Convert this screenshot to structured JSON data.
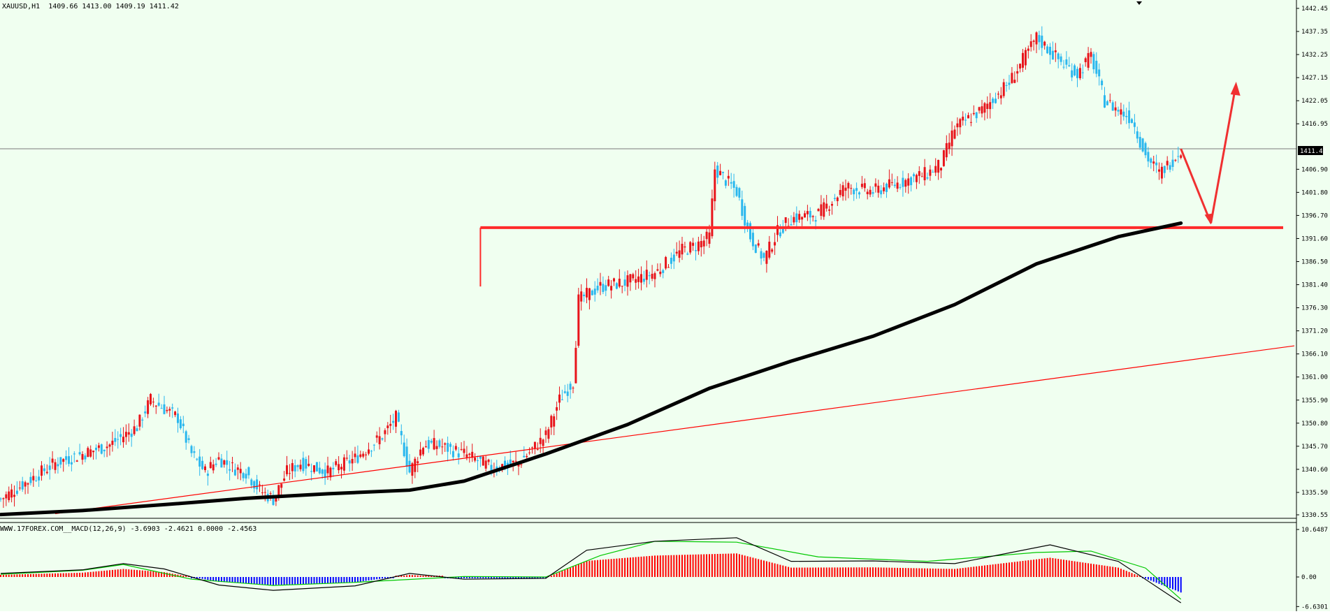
{
  "header": {
    "title": "XAUUSD,H1",
    "ohlc": "1409.66 1413.00 1409.19 1411.42"
  },
  "price_marker": "1411.42",
  "macd_header": "WWW.17FOREX.COM__MACD(12,26,9) -3.6903 -2.4621 0.0000 -2.4563",
  "colors": {
    "background": "#f0fff0",
    "bull_candle": "#e8141b",
    "bear_candle": "#2ab7ee",
    "moving_average": "#000000",
    "support_line": "#ff2a2a",
    "trendline": "#ff0000",
    "macd_positive": "#ff0000",
    "macd_negative": "#0000ff",
    "macd_line": "#000000",
    "signal_line": "#00c800"
  },
  "chart_data": [
    {
      "type": "candlestick",
      "symbol": "XAUUSD",
      "timeframe": "H1",
      "ylim": [
        1330.55,
        1445
      ],
      "yticks": [
        "1442.45",
        "1437.35",
        "1432.25",
        "1427.15",
        "1422.05",
        "1416.95",
        "1411.42",
        "1406.90",
        "1401.80",
        "1396.70",
        "1391.60",
        "1386.50",
        "1381.40",
        "1376.30",
        "1371.20",
        "1366.10",
        "1361.00",
        "1355.90",
        "1350.80",
        "1345.70",
        "1340.60",
        "1335.50",
        "1330.55"
      ],
      "close_path": [
        [
          0,
          1334
        ],
        [
          10,
          1338
        ],
        [
          20,
          1342
        ],
        [
          30,
          1344
        ],
        [
          40,
          1346
        ],
        [
          50,
          1350
        ],
        [
          55,
          1356
        ],
        [
          60,
          1354
        ],
        [
          65,
          1352
        ],
        [
          70,
          1344
        ],
        [
          75,
          1340
        ],
        [
          80,
          1343
        ],
        [
          85,
          1341
        ],
        [
          90,
          1340
        ],
        [
          95,
          1336
        ],
        [
          100,
          1334
        ],
        [
          105,
          1340
        ],
        [
          110,
          1342
        ],
        [
          120,
          1340
        ],
        [
          130,
          1343
        ],
        [
          140,
          1348
        ],
        [
          145,
          1352
        ],
        [
          150,
          1340
        ],
        [
          155,
          1346
        ],
        [
          160,
          1346
        ],
        [
          170,
          1344
        ],
        [
          180,
          1341
        ],
        [
          190,
          1342
        ],
        [
          200,
          1348
        ],
        [
          205,
          1356
        ],
        [
          210,
          1360
        ],
        [
          212,
          1378
        ],
        [
          220,
          1381
        ],
        [
          230,
          1382
        ],
        [
          240,
          1384
        ],
        [
          250,
          1389
        ],
        [
          255,
          1390
        ],
        [
          260,
          1392
        ],
        [
          262,
          1407
        ],
        [
          270,
          1402
        ],
        [
          275,
          1392
        ],
        [
          280,
          1387
        ],
        [
          285,
          1393
        ],
        [
          290,
          1396
        ],
        [
          300,
          1397
        ],
        [
          310,
          1403
        ],
        [
          320,
          1402
        ],
        [
          330,
          1404
        ],
        [
          340,
          1406
        ],
        [
          345,
          1408
        ],
        [
          350,
          1416
        ],
        [
          360,
          1420
        ],
        [
          370,
          1426
        ],
        [
          380,
          1436
        ],
        [
          390,
          1430
        ],
        [
          395,
          1428
        ],
        [
          400,
          1432
        ],
        [
          405,
          1422
        ],
        [
          415,
          1418
        ],
        [
          420,
          1410
        ],
        [
          425,
          1406
        ],
        [
          430,
          1409
        ],
        [
          433,
          1411.42
        ]
      ],
      "ma_path": [
        [
          0,
          1330.6
        ],
        [
          30,
          1331.5
        ],
        [
          60,
          1332.8
        ],
        [
          90,
          1334.2
        ],
        [
          120,
          1335.2
        ],
        [
          150,
          1336.0
        ],
        [
          170,
          1338.0
        ],
        [
          200,
          1344.0
        ],
        [
          230,
          1350.5
        ],
        [
          260,
          1358.5
        ],
        [
          290,
          1364.5
        ],
        [
          320,
          1370.0
        ],
        [
          350,
          1377.0
        ],
        [
          380,
          1386.0
        ],
        [
          410,
          1392.0
        ],
        [
          433,
          1395.0
        ]
      ],
      "support_level": 1394.0,
      "trendline": [
        [
          20,
          1330.8
        ],
        [
          433,
          1364.5
        ]
      ],
      "projection": [
        [
          433,
          1411.42
        ],
        [
          444,
          1395.0
        ],
        [
          453,
          1425.0
        ]
      ]
    },
    {
      "type": "bar",
      "title": "MACD(12,26,9)",
      "values_label": [
        "10.6487",
        "0.00",
        "-6.6301"
      ],
      "ylim": [
        -6.6301,
        10.6487
      ],
      "macd_line": [
        [
          0,
          0.8
        ],
        [
          30,
          1.6
        ],
        [
          45,
          3.0
        ],
        [
          60,
          1.8
        ],
        [
          80,
          -1.8
        ],
        [
          100,
          -3.0
        ],
        [
          130,
          -2.0
        ],
        [
          150,
          0.8
        ],
        [
          170,
          -0.5
        ],
        [
          200,
          -0.3
        ],
        [
          215,
          6.0
        ],
        [
          240,
          8.0
        ],
        [
          270,
          8.8
        ],
        [
          290,
          3.5
        ],
        [
          320,
          3.6
        ],
        [
          350,
          3.0
        ],
        [
          385,
          7.2
        ],
        [
          410,
          3.5
        ],
        [
          433,
          -5.8
        ]
      ],
      "signal_line": [
        [
          0,
          0.6
        ],
        [
          30,
          1.5
        ],
        [
          45,
          2.8
        ],
        [
          70,
          -0.5
        ],
        [
          100,
          -1.9
        ],
        [
          130,
          -1.2
        ],
        [
          170,
          0.1
        ],
        [
          200,
          0.0
        ],
        [
          220,
          4.8
        ],
        [
          240,
          8.0
        ],
        [
          270,
          7.8
        ],
        [
          300,
          4.5
        ],
        [
          340,
          3.5
        ],
        [
          380,
          5.5
        ],
        [
          400,
          5.8
        ],
        [
          420,
          2.0
        ],
        [
          433,
          -5.0
        ]
      ]
    }
  ]
}
